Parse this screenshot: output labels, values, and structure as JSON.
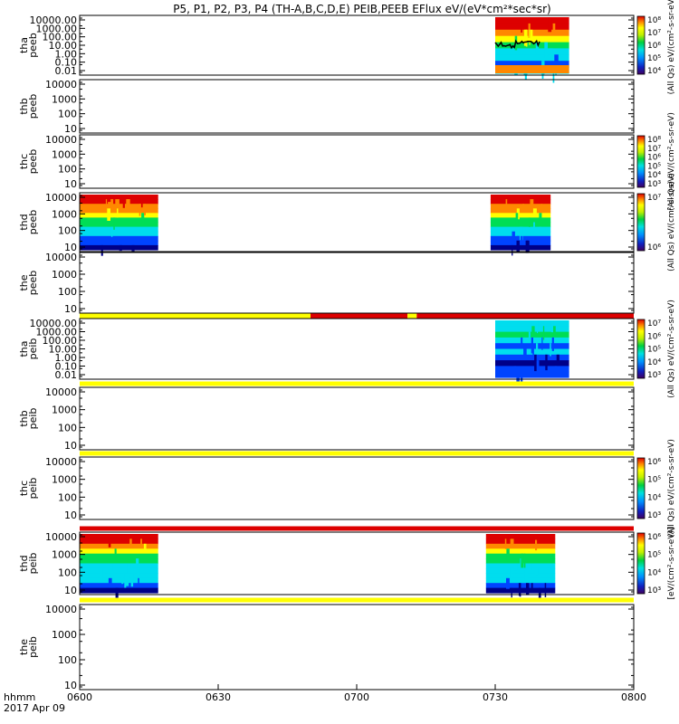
{
  "title": "P5, P1, P2, P3, P4 (TH-A,B,C,D,E) PEIB,PEEB EFlux eV/(eV*cm²*sec*sr)",
  "footer": {
    "time_label": "hhmm",
    "date_label": "2017 Apr 09"
  },
  "palette": {
    "red": "#dd0000",
    "yellow": "#ffff00",
    "orange": "#ff8800",
    "green": "#00dd55",
    "cyan": "#00ddee",
    "blue": "#0044ff",
    "navy": "#000088"
  },
  "chart_data": {
    "type": "heatmap",
    "x_axis": {
      "start": "0600",
      "end": "0800",
      "ticks": [
        "0600",
        "0630",
        "0700",
        "0730",
        "0800"
      ]
    },
    "panels": [
      {
        "id": "tha-peeb",
        "ylabel": [
          "tha",
          "peeb"
        ],
        "yticks": [
          "10000.00",
          "1000.00",
          "100.00",
          "10.00",
          "1.00",
          "0.10",
          "0.01"
        ],
        "data_intervals": [
          [
            "0730",
            "0746"
          ]
        ],
        "style": "peeb-low",
        "colorbar": {
          "ticks": [
            "10⁸",
            "10⁷",
            "10⁶",
            "10⁵",
            "10⁴"
          ],
          "label": "(All Qs) eV/(cm²-s-sr-eV)"
        }
      },
      {
        "id": "thb-peeb",
        "ylabel": [
          "thb",
          "peeb"
        ],
        "yticks": [
          "10000",
          "1000",
          "100",
          "10"
        ],
        "data_intervals": []
      },
      {
        "id": "thc-peeb",
        "ylabel": [
          "thc",
          "peeb"
        ],
        "yticks": [
          "10000",
          "1000",
          "100",
          "10"
        ],
        "data_intervals": [],
        "colorbar": {
          "ticks": [
            "10⁸",
            "10⁷",
            "10⁶",
            "10⁵",
            "10⁴",
            "10³"
          ],
          "label": "(All Qs) eV/(cm²-s-sr-eV)"
        }
      },
      {
        "id": "thd-peeb",
        "ylabel": [
          "thd",
          "peeb"
        ],
        "yticks": [
          "10000",
          "1000",
          "100",
          "10"
        ],
        "data_intervals": [
          [
            "0600",
            "0617"
          ],
          [
            "0729",
            "0742"
          ]
        ],
        "style": "peeb-high",
        "colorbar": {
          "ticks": [
            "10⁷",
            "10⁶"
          ],
          "label": "(All Qs) eV/(cm²-s-sr-eV)"
        }
      },
      {
        "id": "the-peeb",
        "ylabel": [
          "the",
          "peeb"
        ],
        "yticks": [
          "10000",
          "1000",
          "100",
          "10"
        ],
        "data_intervals": []
      },
      {
        "id": "tha-peib",
        "ylabel": [
          "tha",
          "peib"
        ],
        "yticks": [
          "10000.00",
          "1000.00",
          "100.00",
          "10.00",
          "1.00",
          "0.10",
          "0.01"
        ],
        "data_intervals": [
          [
            "0730",
            "0746"
          ]
        ],
        "style": "peib-low",
        "colorbar": {
          "ticks": [
            "10⁷",
            "10⁶",
            "10⁵",
            "10⁴",
            "10³"
          ],
          "label": "(All Qs) eV/(cm²-s-sr-eV)"
        }
      },
      {
        "id": "thb-peib",
        "ylabel": [
          "thb",
          "peib"
        ],
        "yticks": [
          "10000",
          "1000",
          "100",
          "10"
        ],
        "data_intervals": []
      },
      {
        "id": "thc-peib",
        "ylabel": [
          "thc",
          "peib"
        ],
        "yticks": [
          "10000",
          "1000",
          "100",
          "10"
        ],
        "data_intervals": [],
        "colorbar": {
          "ticks": [
            "10⁶",
            "10⁵",
            "10⁴",
            "10³"
          ],
          "label": "(All Qs) eV/(cm²-s-sr-eV)"
        }
      },
      {
        "id": "thd-peib",
        "ylabel": [
          "thd",
          "peib"
        ],
        "yticks": [
          "10000",
          "1000",
          "100",
          "10"
        ],
        "data_intervals": [
          [
            "0600",
            "0617"
          ],
          [
            "0728",
            "0743"
          ]
        ],
        "style": "peib-high",
        "colorbar": {
          "ticks": [
            "10⁶",
            "10⁵",
            "10⁴",
            "10³"
          ],
          "label": "[eV/(cm²-s-sr-eV)]"
        }
      },
      {
        "id": "the-peib",
        "ylabel": [
          "the",
          "peib"
        ],
        "yticks": [
          "10000",
          "1000",
          "100",
          "10"
        ],
        "data_intervals": []
      }
    ],
    "flag_bars": [
      {
        "after_panel": 4,
        "segments": [
          [
            "0600",
            "0650",
            "yellow"
          ],
          [
            "0650",
            "0711",
            "red"
          ],
          [
            "0711",
            "0713",
            "yellow"
          ],
          [
            "0713",
            "0800",
            "red"
          ]
        ]
      },
      {
        "after_panel": 5,
        "segments": [
          [
            "0600",
            "0800",
            "yellow"
          ]
        ]
      },
      {
        "after_panel": 6,
        "segments": [
          [
            "0600",
            "0800",
            "yellow"
          ]
        ]
      },
      {
        "after_panel": 7,
        "segments": [
          [
            "0600",
            "0800",
            "red"
          ]
        ]
      },
      {
        "after_panel": 8,
        "segments": [
          [
            "0600",
            "0800",
            "yellow"
          ]
        ]
      }
    ]
  }
}
